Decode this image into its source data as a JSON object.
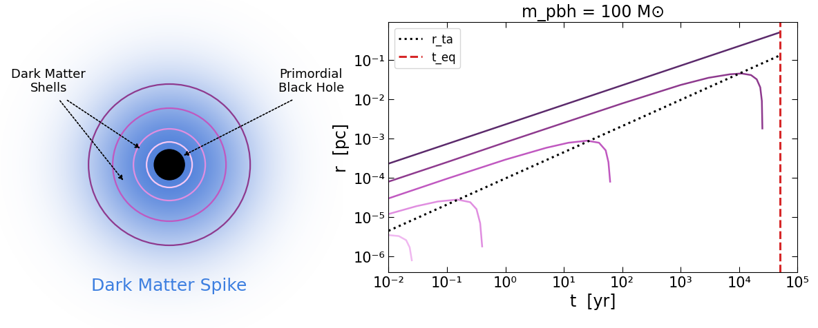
{
  "diagram": {
    "shells_label": "Dark Matter\nShells",
    "black_hole_label": "Primordial\nBlack Hole",
    "spike_label": "Dark Matter Spike"
  },
  "chart_data": {
    "type": "line",
    "title": "m_pbh = 100 M⊙",
    "x_label": "t  [yr]",
    "y_label": "r  [pc]",
    "log": true,
    "grid": false,
    "legend": "upper left",
    "xlim": [
      0.01,
      100000
    ],
    "ylim": [
      4e-07,
      0.9
    ],
    "xticks": [
      {
        "value": 0.01,
        "label": "10⁻²"
      },
      {
        "value": 0.1,
        "label": "10⁻¹"
      },
      {
        "value": 1,
        "label": "10⁰"
      },
      {
        "value": 10,
        "label": "10¹"
      },
      {
        "value": 100,
        "label": "10²"
      },
      {
        "value": 1000,
        "label": "10³"
      },
      {
        "value": 10000,
        "label": "10⁴"
      },
      {
        "value": 100000,
        "label": "10⁵"
      }
    ],
    "yticks": [
      {
        "value": 1e-06,
        "label": "10⁻⁶"
      },
      {
        "value": 1e-05,
        "label": "10⁻⁵"
      },
      {
        "value": 0.0001,
        "label": "10⁻⁴"
      },
      {
        "value": 0.001,
        "label": "10⁻³"
      },
      {
        "value": 0.01,
        "label": "10⁻²"
      },
      {
        "value": 0.1,
        "label": "10⁻¹"
      }
    ],
    "series": [
      {
        "color": "#5b2a6b",
        "line_style": "solid",
        "x": [
          0.01,
          50000
        ],
        "values": [
          0.00023,
          0.5
        ]
      },
      {
        "color": "#8e3a8e",
        "line_style": "solid",
        "x": [
          0.01,
          0.1,
          1,
          10,
          100,
          1000,
          3000,
          7000,
          11000,
          16000,
          20000,
          23000,
          24500,
          25000
        ],
        "values": [
          8e-05,
          0.00025,
          0.0008,
          0.0025,
          0.0078,
          0.023,
          0.035,
          0.043,
          0.045,
          0.041,
          0.032,
          0.02,
          0.009,
          0.0018
        ]
      },
      {
        "color": "#c058c0",
        "line_style": "solid",
        "x": [
          0.01,
          0.1,
          1,
          5,
          12,
          25,
          40,
          52,
          58,
          62
        ],
        "values": [
          3e-05,
          9.5e-05,
          0.00029,
          0.00058,
          0.00078,
          0.00088,
          0.00078,
          0.0005,
          0.00025,
          8e-05
        ]
      },
      {
        "color": "#e08ee0",
        "line_style": "solid",
        "x": [
          0.01,
          0.03,
          0.07,
          0.15,
          0.25,
          0.32,
          0.37,
          0.4
        ],
        "values": [
          1.2e-05,
          1.9e-05,
          2.5e-05,
          2.8e-05,
          2.4e-05,
          1.6e-05,
          7e-06,
          1.8e-06
        ]
      },
      {
        "color": "#f0b8f0",
        "line_style": "solid",
        "x": [
          0.01,
          0.015,
          0.02,
          0.023,
          0.025
        ],
        "values": [
          3.5e-06,
          3.3e-06,
          2.6e-06,
          1.7e-06,
          8e-07
        ]
      },
      {
        "name": "r_ta",
        "color": "#000000",
        "line_style": "dotted",
        "x": [
          0.01,
          50000
        ],
        "values": [
          4.5e-06,
          0.13
        ]
      },
      {
        "name": "t_eq",
        "type": "vline",
        "color": "#d62728",
        "line_style": "dashed",
        "x": [
          50000
        ]
      }
    ]
  }
}
